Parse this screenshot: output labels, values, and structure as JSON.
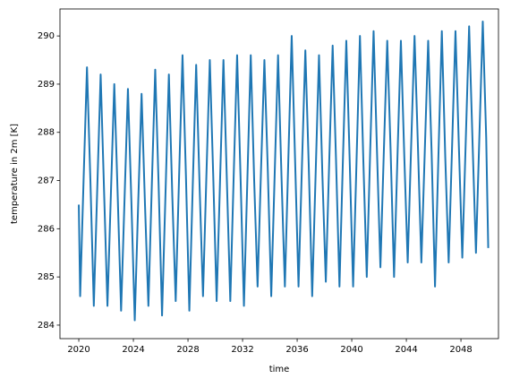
{
  "chart_data": {
    "type": "line",
    "xlabel": "time",
    "ylabel": "temperature in 2m [K]",
    "color": "#1f77b4",
    "xlim": [
      2018.62,
      2050.75
    ],
    "xticks": [
      2020,
      2024,
      2028,
      2032,
      2036,
      2040,
      2044,
      2048
    ],
    "ylim": [
      283.72,
      290.56
    ],
    "yticks": [
      284,
      285,
      286,
      287,
      288,
      289,
      290
    ],
    "grid": false,
    "x": [
      2020,
      2020.1,
      2020.35,
      2020.6,
      2020.85,
      2021.1,
      2021.35,
      2021.6,
      2021.85,
      2022.1,
      2022.35,
      2022.6,
      2022.85,
      2023.1,
      2023.35,
      2023.6,
      2023.85,
      2024.1,
      2024.35,
      2024.6,
      2024.85,
      2025.1,
      2025.35,
      2025.6,
      2025.85,
      2026.1,
      2026.35,
      2026.6,
      2026.85,
      2027.1,
      2027.35,
      2027.6,
      2027.85,
      2028.1,
      2028.35,
      2028.6,
      2028.85,
      2029.1,
      2029.35,
      2029.6,
      2029.85,
      2030.1,
      2030.35,
      2030.6,
      2030.85,
      2031.1,
      2031.35,
      2031.6,
      2031.85,
      2032.1,
      2032.35,
      2032.6,
      2032.85,
      2033.1,
      2033.35,
      2033.6,
      2033.85,
      2034.1,
      2034.35,
      2034.6,
      2034.85,
      2035.1,
      2035.35,
      2035.6,
      2035.85,
      2036.1,
      2036.35,
      2036.6,
      2036.85,
      2037.1,
      2037.35,
      2037.6,
      2037.85,
      2038.1,
      2038.35,
      2038.6,
      2038.85,
      2039.1,
      2039.35,
      2039.6,
      2039.85,
      2040.1,
      2040.35,
      2040.6,
      2040.85,
      2041.1,
      2041.35,
      2041.6,
      2041.85,
      2042.1,
      2042.35,
      2042.6,
      2042.85,
      2043.1,
      2043.35,
      2043.6,
      2043.85,
      2044.1,
      2044.35,
      2044.6,
      2044.85,
      2045.1,
      2045.35,
      2045.6,
      2045.85,
      2046.1,
      2046.35,
      2046.6,
      2046.85,
      2047.1,
      2047.35,
      2047.6,
      2047.85,
      2048.1,
      2048.35,
      2048.6,
      2048.85,
      2049.1,
      2049.35,
      2049.6,
      2049.85,
      2050
    ],
    "values": [
      286.5,
      284.6,
      287.0,
      289.35,
      287.0,
      284.4,
      286.8,
      289.2,
      286.8,
      284.4,
      286.7,
      289.0,
      286.7,
      284.3,
      286.6,
      288.9,
      286.6,
      284.1,
      286.5,
      288.8,
      286.5,
      284.4,
      286.9,
      289.3,
      286.9,
      284.2,
      286.7,
      289.2,
      286.7,
      284.5,
      287.1,
      289.6,
      287.1,
      284.3,
      286.9,
      289.4,
      286.9,
      284.6,
      287.1,
      289.5,
      287.1,
      284.5,
      287.0,
      289.5,
      287.0,
      284.5,
      287.1,
      289.6,
      287.1,
      284.4,
      287.0,
      289.6,
      287.0,
      284.8,
      287.2,
      289.5,
      287.2,
      284.6,
      287.1,
      289.6,
      287.1,
      284.8,
      287.4,
      290.0,
      287.4,
      284.8,
      287.3,
      289.7,
      287.3,
      284.6,
      287.1,
      289.6,
      287.1,
      284.9,
      287.4,
      289.8,
      287.4,
      284.8,
      287.4,
      289.9,
      287.4,
      284.8,
      287.4,
      290.0,
      287.4,
      285.0,
      287.6,
      290.1,
      287.6,
      285.2,
      287.6,
      289.9,
      287.6,
      285.0,
      287.5,
      289.9,
      287.5,
      285.3,
      287.7,
      290.0,
      287.7,
      285.3,
      287.6,
      289.9,
      287.6,
      284.8,
      287.5,
      290.1,
      287.5,
      285.3,
      287.7,
      290.1,
      287.7,
      285.4,
      287.8,
      290.2,
      287.8,
      285.5,
      287.9,
      290.3,
      287.9,
      285.6
    ]
  }
}
